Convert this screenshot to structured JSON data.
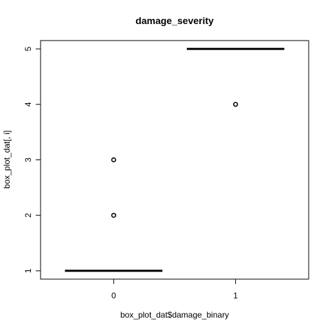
{
  "chart_data": {
    "type": "box",
    "title": "damage_severity",
    "xlabel": "box_plot_dat$damage_binary",
    "ylabel": "box_plot_dat[, i]",
    "categories": [
      "0",
      "1"
    ],
    "y_ticks": [
      "1",
      "2",
      "3",
      "4",
      "5"
    ],
    "ylim": [
      0.85,
      5.15
    ],
    "xlim": [
      0.4,
      2.6
    ],
    "boxes": [
      {
        "category": "0",
        "median": 1,
        "q1": 1,
        "q3": 1,
        "whisker_low": 1,
        "whisker_high": 1,
        "outliers": [
          2,
          3
        ]
      },
      {
        "category": "1",
        "median": 5,
        "q1": 5,
        "q3": 5,
        "whisker_low": 5,
        "whisker_high": 5,
        "outliers": [
          4
        ]
      }
    ],
    "grid": false,
    "legend": "none"
  }
}
